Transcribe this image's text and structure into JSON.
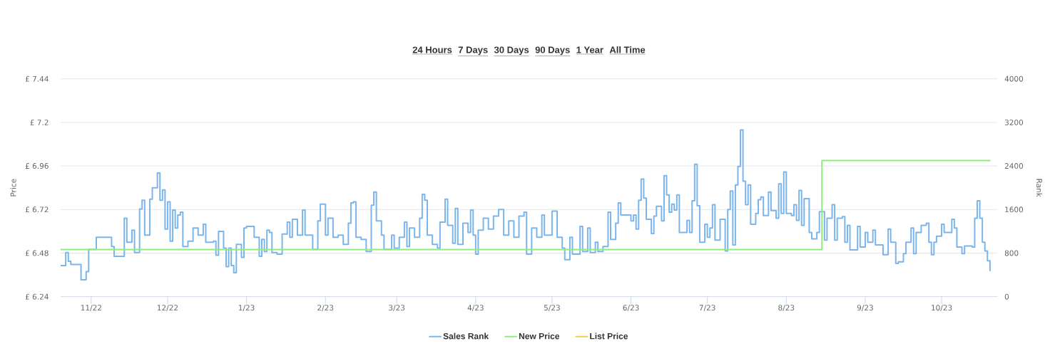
{
  "chart_data": {
    "type": "step",
    "annotations": [
      "24 Hours",
      "7 Days",
      "30 Days",
      "90 Days",
      "1 Year",
      "All Time"
    ],
    "ylabel": "Price",
    "y2label": "Rank",
    "xlim": [
      "2022-10-20",
      "2023-10-23"
    ],
    "xticks": [
      {
        "value": "2022-11-01",
        "label": "11/22"
      },
      {
        "value": "2022-12-01",
        "label": "12/22"
      },
      {
        "value": "2023-01-01",
        "label": "1/23"
      },
      {
        "value": "2023-02-01",
        "label": "2/23"
      },
      {
        "value": "2023-03-01",
        "label": "3/23"
      },
      {
        "value": "2023-04-01",
        "label": "4/23"
      },
      {
        "value": "2023-05-01",
        "label": "5/23"
      },
      {
        "value": "2023-06-01",
        "label": "6/23"
      },
      {
        "value": "2023-07-01",
        "label": "7/23"
      },
      {
        "value": "2023-08-01",
        "label": "8/23"
      },
      {
        "value": "2023-09-01",
        "label": "9/23"
      },
      {
        "value": "2023-10-01",
        "label": "10/23"
      }
    ],
    "ylim": [
      6.24,
      7.44
    ],
    "yticks": [
      {
        "value": 6.24,
        "label": "£ 6.24"
      },
      {
        "value": 6.48,
        "label": "£ 6.48"
      },
      {
        "value": 6.72,
        "label": "£ 6.72"
      },
      {
        "value": 6.96,
        "label": "£ 6.96"
      },
      {
        "value": 7.2,
        "label": "£ 7.2"
      },
      {
        "value": 7.44,
        "label": "£ 7.44"
      }
    ],
    "y2lim": [
      0,
      4000
    ],
    "y2ticks": [
      0,
      800,
      1600,
      2400,
      3200,
      4000
    ],
    "grid": "y",
    "legend": "bottom",
    "series": [
      {
        "name": "Sales Rank",
        "color": "#7cb5ec",
        "axis": "y2",
        "x": [
          "2022-10-20",
          "2022-10-22",
          "2022-10-23",
          "2022-10-24",
          "2022-10-28",
          "2022-10-30",
          "2022-10-31",
          "2022-11-03",
          "2022-11-06",
          "2022-11-09",
          "2022-11-10",
          "2022-11-14",
          "2022-11-15",
          "2022-11-17",
          "2022-11-18",
          "2022-11-20",
          "2022-11-21",
          "2022-11-22",
          "2022-11-24",
          "2022-11-25",
          "2022-11-27",
          "2022-11-28",
          "2022-11-29",
          "2022-11-30",
          "2022-12-01",
          "2022-12-02",
          "2022-12-03",
          "2022-12-04",
          "2022-12-05",
          "2022-12-06",
          "2022-12-07",
          "2022-12-09",
          "2022-12-11",
          "2022-12-13",
          "2022-12-15",
          "2022-12-16",
          "2022-12-19",
          "2022-12-20",
          "2022-12-21",
          "2022-12-23",
          "2022-12-24",
          "2022-12-25",
          "2022-12-26",
          "2022-12-27",
          "2022-12-28",
          "2022-12-30",
          "2022-12-31",
          "2023-01-01",
          "2023-01-04",
          "2023-01-06",
          "2023-01-07",
          "2023-01-08",
          "2023-01-09",
          "2023-01-10",
          "2023-01-11",
          "2023-01-13",
          "2023-01-15",
          "2023-01-17",
          "2023-01-18",
          "2023-01-19",
          "2023-01-21",
          "2023-01-23",
          "2023-01-24",
          "2023-01-27",
          "2023-01-29",
          "2023-01-30",
          "2023-01-31",
          "2023-02-01",
          "2023-02-02",
          "2023-02-04",
          "2023-02-06",
          "2023-02-08",
          "2023-02-10",
          "2023-02-11",
          "2023-02-12",
          "2023-02-13",
          "2023-02-15",
          "2023-02-17",
          "2023-02-19",
          "2023-02-20",
          "2023-02-21",
          "2023-02-23",
          "2023-02-24",
          "2023-02-27",
          "2023-02-28",
          "2023-03-02",
          "2023-03-04",
          "2023-03-05",
          "2023-03-06",
          "2023-03-08",
          "2023-03-10",
          "2023-03-11",
          "2023-03-12",
          "2023-03-13",
          "2023-03-15",
          "2023-03-17",
          "2023-03-18",
          "2023-03-20",
          "2023-03-21",
          "2023-03-23",
          "2023-03-24",
          "2023-03-25",
          "2023-03-27",
          "2023-03-29",
          "2023-03-30",
          "2023-03-31",
          "2023-04-01",
          "2023-04-02",
          "2023-04-04",
          "2023-04-06",
          "2023-04-08",
          "2023-04-10",
          "2023-04-12",
          "2023-04-14",
          "2023-04-16",
          "2023-04-18",
          "2023-04-20",
          "2023-04-21",
          "2023-04-23",
          "2023-04-25",
          "2023-04-27",
          "2023-04-28",
          "2023-05-01",
          "2023-05-03",
          "2023-05-05",
          "2023-05-06",
          "2023-05-08",
          "2023-05-09",
          "2023-05-12",
          "2023-05-13",
          "2023-05-15",
          "2023-05-16",
          "2023-05-18",
          "2023-05-19",
          "2023-05-21",
          "2023-05-23",
          "2023-05-24",
          "2023-05-26",
          "2023-05-27",
          "2023-05-28",
          "2023-05-31",
          "2023-06-01",
          "2023-06-02",
          "2023-06-03",
          "2023-06-04",
          "2023-06-05",
          "2023-06-06",
          "2023-06-07",
          "2023-06-09",
          "2023-06-10",
          "2023-06-11",
          "2023-06-13",
          "2023-06-14",
          "2023-06-15",
          "2023-06-16",
          "2023-06-17",
          "2023-06-18",
          "2023-06-19",
          "2023-06-20",
          "2023-06-23",
          "2023-06-24",
          "2023-06-25",
          "2023-06-26",
          "2023-06-27",
          "2023-06-28",
          "2023-06-30",
          "2023-07-01",
          "2023-07-02",
          "2023-07-03",
          "2023-07-04",
          "2023-07-06",
          "2023-07-08",
          "2023-07-09",
          "2023-07-10",
          "2023-07-11",
          "2023-07-12",
          "2023-07-13",
          "2023-07-14",
          "2023-07-15",
          "2023-07-16",
          "2023-07-17",
          "2023-07-18",
          "2023-07-20",
          "2023-07-21",
          "2023-07-22",
          "2023-07-23",
          "2023-07-25",
          "2023-07-26",
          "2023-07-28",
          "2023-07-29",
          "2023-07-30",
          "2023-07-31",
          "2023-08-01",
          "2023-08-03",
          "2023-08-04",
          "2023-08-05",
          "2023-08-06",
          "2023-08-07",
          "2023-08-08",
          "2023-08-10",
          "2023-08-11",
          "2023-08-13",
          "2023-08-14",
          "2023-08-16",
          "2023-08-17",
          "2023-08-19",
          "2023-08-20",
          "2023-08-21",
          "2023-08-23",
          "2023-08-24",
          "2023-08-25",
          "2023-08-26",
          "2023-08-29",
          "2023-08-30",
          "2023-09-01",
          "2023-09-02",
          "2023-09-04",
          "2023-09-05",
          "2023-09-08",
          "2023-09-10",
          "2023-09-11",
          "2023-09-13",
          "2023-09-14",
          "2023-09-16",
          "2023-09-17",
          "2023-09-19",
          "2023-09-20",
          "2023-09-21",
          "2023-09-23",
          "2023-09-25",
          "2023-09-26",
          "2023-09-27",
          "2023-09-28",
          "2023-09-29",
          "2023-10-01",
          "2023-10-02",
          "2023-10-05",
          "2023-10-06",
          "2023-10-07",
          "2023-10-09",
          "2023-10-10",
          "2023-10-13",
          "2023-10-14",
          "2023-10-15",
          "2023-10-16",
          "2023-10-17",
          "2023-10-18",
          "2023-10-19",
          "2023-10-20"
        ],
        "values": [
          570,
          810,
          650,
          590,
          310,
          460,
          870,
          1090,
          1090,
          920,
          740,
          1440,
          1000,
          1220,
          810,
          1610,
          1770,
          1130,
          1790,
          2000,
          2270,
          1770,
          1960,
          1240,
          1740,
          1020,
          1590,
          1260,
          1500,
          1550,
          920,
          1020,
          1260,
          1130,
          1330,
          1000,
          1020,
          760,
          1200,
          890,
          550,
          890,
          570,
          440,
          960,
          720,
          1260,
          1290,
          1090,
          740,
          1050,
          830,
          1220,
          1180,
          810,
          780,
          1150,
          1370,
          1090,
          1420,
          1130,
          1590,
          1130,
          870,
          1390,
          1700,
          1700,
          1130,
          1440,
          1090,
          1130,
          960,
          1350,
          1720,
          1740,
          1090,
          1050,
          830,
          1680,
          1920,
          1390,
          1130,
          870,
          1130,
          890,
          1090,
          1370,
          920,
          1260,
          1090,
          1440,
          1880,
          1770,
          1130,
          960,
          890,
          1370,
          1790,
          1310,
          980,
          1620,
          960,
          1350,
          1180,
          1590,
          1130,
          780,
          1220,
          1440,
          1240,
          1480,
          1600,
          1130,
          1390,
          1090,
          1480,
          1550,
          780,
          1260,
          1090,
          1500,
          1130,
          1570,
          1090,
          890,
          680,
          1090,
          780,
          1290,
          830,
          1260,
          810,
          1000,
          830,
          920,
          1550,
          1050,
          1350,
          1720,
          1500,
          1500,
          1390,
          1500,
          1240,
          1770,
          2160,
          1810,
          1420,
          1160,
          1480,
          1660,
          1390,
          2220,
          1870,
          1550,
          1700,
          1590,
          1870,
          1180,
          1400,
          1180,
          1760,
          2430,
          1670,
          1000,
          1330,
          1090,
          1260,
          1690,
          1040,
          1420,
          840,
          1600,
          1940,
          950,
          2050,
          2390,
          3060,
          2120,
          1690,
          2050,
          1330,
          1530,
          1780,
          1830,
          1490,
          1920,
          1580,
          1440,
          2070,
          1530,
          2290,
          1530,
          1490,
          1690,
          1400,
          1950,
          1310,
          1800,
          1180,
          1060,
          1180,
          1560,
          1040,
          1440,
          1690,
          1040,
          1440,
          1470,
          1000,
          1310,
          860,
          1290,
          910,
          1180,
          1000,
          1220,
          950,
          770,
          1240,
          1000,
          610,
          640,
          790,
          1000,
          1260,
          790,
          1180,
          1310,
          1350,
          1000,
          770,
          1000,
          1110,
          1330,
          1180,
          1420,
          1260,
          910,
          790,
          930,
          910,
          1440,
          1760,
          1440,
          1000,
          840,
          660,
          480
        ]
      },
      {
        "name": "New Price",
        "color": "#90ed7d",
        "x": [
          "2022-10-20",
          "2023-08-15",
          "2023-10-20"
        ],
        "values": [
          6.5,
          6.99,
          6.99
        ]
      },
      {
        "name": "List Price",
        "color": "#e4d354"
      }
    ]
  }
}
